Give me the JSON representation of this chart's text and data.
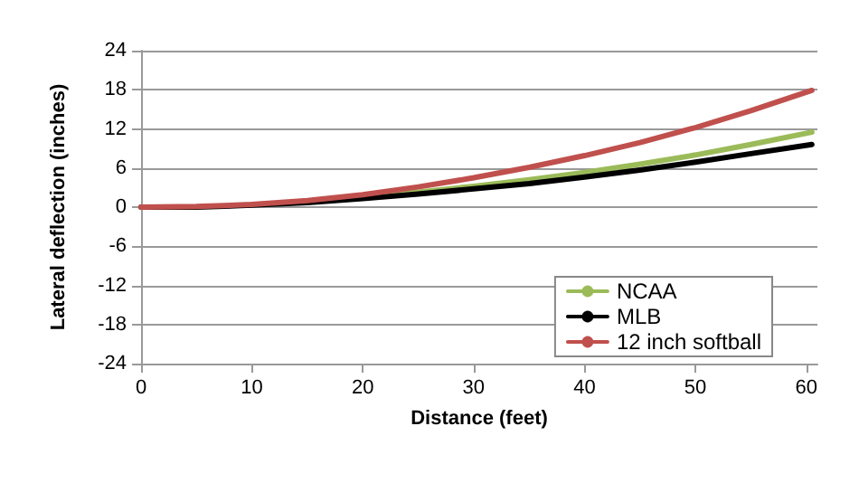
{
  "chart_data": {
    "type": "line",
    "xlabel": "Distance (feet)",
    "ylabel": "Lateral deflection (inches)",
    "xlim": [
      0,
      61
    ],
    "xticks": [
      0,
      10,
      20,
      30,
      40,
      50,
      60
    ],
    "ylim": [
      -24,
      24
    ],
    "yticks": [
      -24,
      -18,
      -12,
      -6,
      0,
      6,
      12,
      18,
      24
    ],
    "grid": "y",
    "legend": "bottom right",
    "marker": "none",
    "line_style": "solid",
    "series": [
      {
        "name": "NCAA",
        "color": "#9bbb59",
        "x": [
          20,
          25,
          30,
          35,
          40,
          45,
          50,
          55,
          60.5
        ],
        "values": [
          1.5,
          2.3,
          3.2,
          4.2,
          5.3,
          6.6,
          8,
          9.6,
          11.5
        ]
      },
      {
        "name": "MLB",
        "color": "#000000",
        "x": [
          0,
          5,
          10,
          15,
          20,
          25,
          30,
          35,
          40,
          45,
          50,
          55,
          60.5
        ],
        "values": [
          0,
          0,
          0.3,
          0.7,
          1.3,
          2,
          2.8,
          3.6,
          4.6,
          5.7,
          6.9,
          8.2,
          9.6
        ]
      },
      {
        "name": "12 inch softball",
        "color": "#c0504d",
        "x": [
          0,
          5,
          10,
          15,
          20,
          25,
          30,
          35,
          40,
          45,
          50,
          55,
          60.5
        ],
        "values": [
          0,
          0.1,
          0.4,
          1,
          1.9,
          3.1,
          4.5,
          6.1,
          7.9,
          9.9,
          12.2,
          14.8,
          17.9
        ]
      }
    ]
  }
}
